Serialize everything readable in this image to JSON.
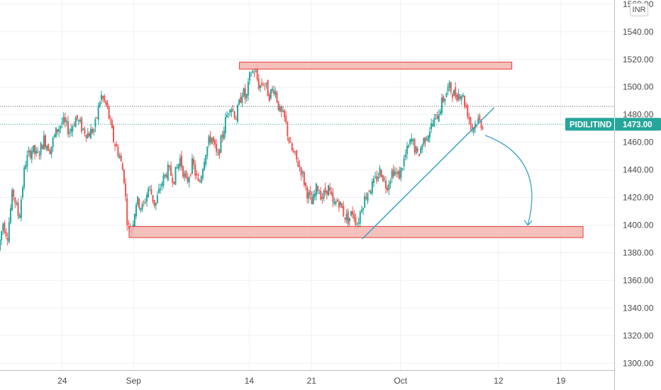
{
  "symbol": "PIDILITIND",
  "currency": "INR",
  "last_price": "1473.00",
  "colors": {
    "up": "#26a69a",
    "down": "#ef5350",
    "zone_fill": "#f4b6b0",
    "zone_stroke": "#e53935",
    "trendline": "#3ba3c7",
    "price_label": "#26a69a",
    "grid": "#eef0f3",
    "axis_text": "#4a4a4a"
  },
  "chart_data": {
    "type": "candlestick",
    "y_axis": {
      "ylim": [
        1295,
        1563
      ],
      "ticks": [
        "1560.00",
        "1540.00",
        "1520.00",
        "1500.00",
        "1480.00",
        "1460.00",
        "1440.00",
        "1420.00",
        "1400.00",
        "1380.00",
        "1360.00",
        "1340.00",
        "1320.00",
        "1300.00"
      ]
    },
    "x_axis": {
      "ticks": [
        {
          "label": "24",
          "day": 24
        },
        {
          "label": "Sep",
          "day": 32
        },
        {
          "label": "14",
          "day": 45
        },
        {
          "label": "21",
          "day": 52
        },
        {
          "label": "Oct",
          "day": 62
        },
        {
          "label": "12",
          "day": 73
        },
        {
          "label": "19",
          "day": 80
        }
      ],
      "note": "days counted from August 1"
    },
    "grid": true,
    "price_path": [
      [
        17.0,
        1382
      ],
      [
        17.5,
        1402
      ],
      [
        18.0,
        1392
      ],
      [
        18.6,
        1425
      ],
      [
        19.3,
        1405
      ],
      [
        20.0,
        1445
      ],
      [
        20.7,
        1455
      ],
      [
        21.4,
        1450
      ],
      [
        22.1,
        1462
      ],
      [
        22.8,
        1455
      ],
      [
        23.5,
        1468
      ],
      [
        24.2,
        1475
      ],
      [
        25.0,
        1468
      ],
      [
        25.7,
        1478
      ],
      [
        26.4,
        1470
      ],
      [
        27.1,
        1466
      ],
      [
        27.8,
        1470
      ],
      [
        28.5,
        1494
      ],
      [
        29.2,
        1485
      ],
      [
        29.9,
        1462
      ],
      [
        30.6,
        1450
      ],
      [
        31.1,
        1435
      ],
      [
        31.5,
        1400
      ],
      [
        31.9,
        1395
      ],
      [
        32.5,
        1418
      ],
      [
        33.2,
        1412
      ],
      [
        33.9,
        1428
      ],
      [
        34.6,
        1414
      ],
      [
        35.3,
        1430
      ],
      [
        36.0,
        1440
      ],
      [
        36.7,
        1434
      ],
      [
        37.4,
        1448
      ],
      [
        38.1,
        1430
      ],
      [
        38.8,
        1445
      ],
      [
        39.5,
        1428
      ],
      [
        40.2,
        1452
      ],
      [
        40.9,
        1465
      ],
      [
        41.6,
        1448
      ],
      [
        42.3,
        1470
      ],
      [
        43.0,
        1488
      ],
      [
        43.7,
        1478
      ],
      [
        44.4,
        1498
      ],
      [
        44.8,
        1490
      ],
      [
        45.3,
        1510
      ],
      [
        45.8,
        1512
      ],
      [
        46.3,
        1500
      ],
      [
        46.8,
        1504
      ],
      [
        47.4,
        1494
      ],
      [
        48.0,
        1500
      ],
      [
        48.6,
        1482
      ],
      [
        49.2,
        1476
      ],
      [
        49.8,
        1456
      ],
      [
        50.4,
        1448
      ],
      [
        51.0,
        1440
      ],
      [
        51.6,
        1425
      ],
      [
        52.2,
        1415
      ],
      [
        52.8,
        1428
      ],
      [
        53.4,
        1420
      ],
      [
        54.0,
        1428
      ],
      [
        54.6,
        1414
      ],
      [
        55.2,
        1418
      ],
      [
        55.8,
        1408
      ],
      [
        56.3,
        1404
      ],
      [
        56.8,
        1410
      ],
      [
        57.3,
        1400
      ],
      [
        57.8,
        1414
      ],
      [
        58.5,
        1425
      ],
      [
        59.2,
        1430
      ],
      [
        59.9,
        1440
      ],
      [
        60.6,
        1428
      ],
      [
        61.3,
        1440
      ],
      [
        62.0,
        1435
      ],
      [
        62.7,
        1450
      ],
      [
        63.4,
        1462
      ],
      [
        64.1,
        1450
      ],
      [
        64.8,
        1462
      ],
      [
        65.5,
        1470
      ],
      [
        66.2,
        1478
      ],
      [
        66.9,
        1490
      ],
      [
        67.6,
        1500
      ],
      [
        68.3,
        1494
      ],
      [
        69.0,
        1496
      ],
      [
        69.6,
        1484
      ],
      [
        70.2,
        1470
      ],
      [
        70.8,
        1476
      ],
      [
        71.4,
        1473
      ]
    ],
    "annotations": [
      {
        "type": "resistance-zone",
        "day_start": 43.9,
        "day_end": 74.5,
        "price_low": 1513,
        "price_high": 1518
      },
      {
        "type": "support-zone",
        "day_start": 31.5,
        "day_end": 82.5,
        "price_low": 1391,
        "price_high": 1399
      },
      {
        "type": "trendline",
        "day_start": 57.7,
        "price_start": 1390,
        "day_end": 72.5,
        "price_end": 1485
      },
      {
        "type": "projection-arrow",
        "day_start": 71.5,
        "price_start": 1465,
        "day_end": 76.3,
        "price_end": 1400
      }
    ],
    "horizontal_levels": [
      {
        "price": 1486,
        "style": "dotted",
        "color": "#555555"
      },
      {
        "price": 1473,
        "style": "dotted",
        "color": "#26a69a"
      }
    ]
  }
}
